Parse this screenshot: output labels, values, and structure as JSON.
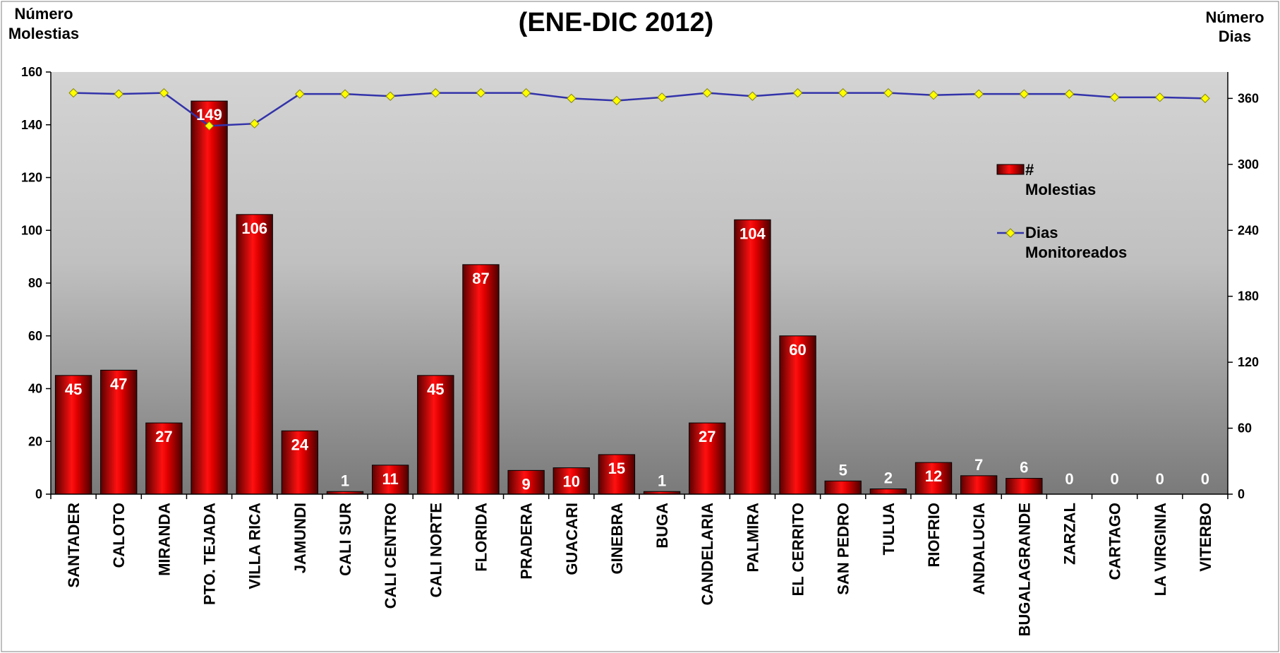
{
  "chart_data": {
    "type": "bar",
    "title": "(ENE-DIC 2012)",
    "ylabel_left": [
      "Número",
      "Molestias"
    ],
    "ylabel_right": [
      "Número",
      "Dias"
    ],
    "ylim_left": [
      0,
      160
    ],
    "yticks_left": [
      0,
      20,
      40,
      60,
      80,
      100,
      120,
      140,
      160
    ],
    "ylim_right": [
      0,
      384
    ],
    "yticks_right": [
      0,
      60,
      120,
      180,
      240,
      300,
      360
    ],
    "categories": [
      "SANTADER",
      "CALOTO",
      "MIRANDA",
      "PTO. TEJADA",
      "VILLA RICA",
      "JAMUNDI",
      "CALI SUR",
      "CALI CENTRO",
      "CALI NORTE",
      "FLORIDA",
      "PRADERA",
      "GUACARI",
      "GINEBRA",
      "BUGA",
      "CANDELARIA",
      "PALMIRA",
      "EL CERRITO",
      "SAN PEDRO",
      "TULUA",
      "RIOFRIO",
      "ANDALUCIA",
      "BUGALAGRANDE",
      "ZARZAL",
      "CARTAGO",
      "LA VIRGINIA",
      "VITERBO"
    ],
    "series": [
      {
        "name": "# Molestias",
        "type": "bar",
        "axis": "left",
        "values": [
          45,
          47,
          27,
          149,
          106,
          24,
          1,
          11,
          45,
          87,
          9,
          10,
          15,
          1,
          27,
          104,
          60,
          5,
          2,
          12,
          7,
          6,
          0,
          0,
          0,
          0
        ],
        "labels": [
          "45",
          "47",
          "27",
          "149",
          "106",
          "24",
          "1",
          "11",
          "45",
          "87",
          "9",
          "10",
          "15",
          "1",
          "27",
          "104",
          "60",
          "5",
          "2",
          "12",
          "7",
          "6",
          "0",
          "0",
          "0",
          "0"
        ],
        "color": "#cc0000"
      },
      {
        "name": "Dias Monitoreados",
        "type": "line",
        "axis": "right",
        "values": [
          365,
          364,
          365,
          335,
          337,
          364,
          364,
          362,
          365,
          365,
          365,
          360,
          358,
          361,
          365,
          362,
          365,
          365,
          365,
          363,
          364,
          364,
          364,
          361,
          361,
          360
        ],
        "line_color": "#3333aa",
        "marker_color": "#ffff00"
      }
    ],
    "legend": {
      "placement": "right",
      "items": [
        {
          "line1": "#",
          "line2": "Molestias"
        },
        {
          "line1": "Dias",
          "line2": "Monitoreados"
        }
      ]
    },
    "grid": false,
    "background_gradient": [
      "#d4d4d4",
      "#7a7a7a"
    ]
  }
}
